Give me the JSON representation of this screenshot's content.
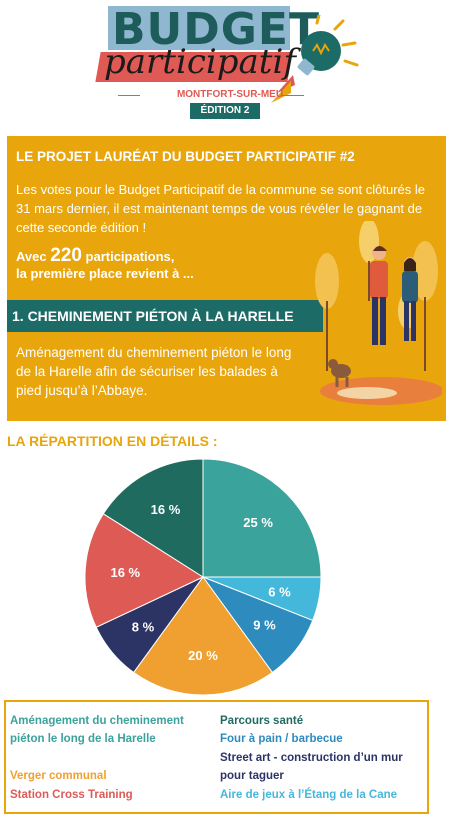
{
  "logo": {
    "budget": "BUDGET",
    "participatif": "participatif",
    "city": "MONTFORT-SUR-MEU",
    "edition": "ÉDITION 2"
  },
  "laureat": {
    "title": "LE PROJET LAURÉAT DU BUDGET PARTICIPATIF #2",
    "text": "Les votes pour le Budget Participatif de la commune se sont clôturés le 31 mars dernier, il est maintenant temps de vous révéler le gagnant de cette seconde édition !",
    "count_prefix": "Avec ",
    "count_number": "220",
    "count_suffix": " participations,",
    "count_line2": "la première place revient à ...",
    "winner": "1. CHEMINEMENT PIÉTON À LA HARELLE",
    "description": "Aménagement du cheminement piéton le long de la Harelle afin de sécuriser les balades à pied jusqu’à l’Abbaye."
  },
  "details_title": "LA RÉPARTITION EN DÉTAILS :",
  "chart_data": {
    "type": "pie",
    "title": "",
    "series": [
      {
        "name": "Aménagement du cheminement piéton le long de la Harelle",
        "value": 25,
        "label": "25 %",
        "color": "#3aa39c"
      },
      {
        "name": "Aire de jeux à l’Étang de la Cane",
        "value": 6,
        "label": "6 %",
        "color": "#44b8db"
      },
      {
        "name": "Four à pain / barbecue",
        "value": 9,
        "label": "9 %",
        "color": "#2e8bbd"
      },
      {
        "name": "Verger communal",
        "value": 20,
        "label": "20 %",
        "color": "#f0a030"
      },
      {
        "name": "Street art - construction d’un mur pour taguer",
        "value": 8,
        "label": "8 %",
        "color": "#2c3466"
      },
      {
        "name": "Station Cross Training",
        "value": 16,
        "label": "16 %",
        "color": "#de5a55"
      },
      {
        "name": "Parcours santé",
        "value": 16,
        "label": "16 %",
        "color": "#1f6b5f"
      }
    ]
  },
  "legend": [
    {
      "text": "Aménagement du cheminement piéton le long de la Harelle",
      "color": "#3aa39c"
    },
    {
      "text": "Verger communal",
      "color": "#f0a030"
    },
    {
      "text": "Station Cross Training",
      "color": "#de5a55"
    },
    {
      "text": "Parcours santé",
      "color": "#1f6b5f"
    },
    {
      "text": "Four à pain / barbecue",
      "color": "#2e8bbd"
    },
    {
      "text": "Street art - construction d’un mur pour taguer",
      "color": "#2c3466"
    },
    {
      "text": "Aire de jeux à l’Étang de la Cane",
      "color": "#44b8db"
    }
  ]
}
